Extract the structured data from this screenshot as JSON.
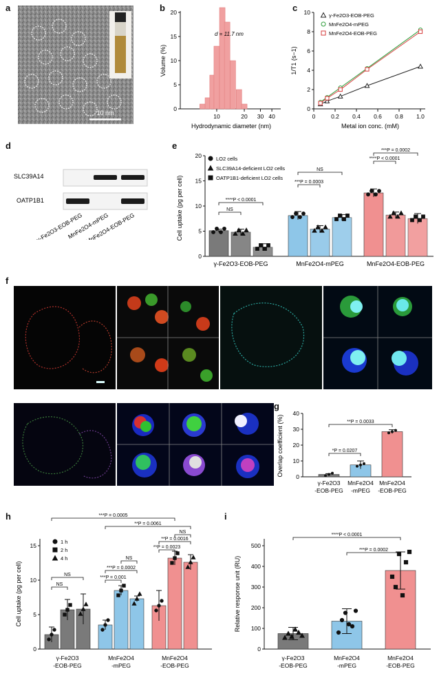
{
  "panels": {
    "a": {
      "label": "a",
      "scalebar": "10 nm"
    },
    "b": {
      "label": "b",
      "annotation": "d = 11.7 nm",
      "ylabel": "Volume (%)",
      "xlabel": "Hydrodynamic diameter (nm)",
      "xticks": [
        "10",
        "20",
        "30",
        "40"
      ],
      "yticks": [
        "0",
        "5",
        "10",
        "15",
        "20"
      ]
    },
    "c": {
      "label": "c",
      "ylabel": "1/T1 (s−1)",
      "xlabel": "Metal ion conc. (mM)",
      "xticks": [
        "0",
        "0.2",
        "0.4",
        "0.6",
        "0.8",
        "1.0"
      ],
      "yticks": [
        "0",
        "2",
        "4",
        "6",
        "8",
        "10"
      ]
    },
    "d": {
      "label": "d",
      "row1": "SLC39A14",
      "row2": "OATP1B1",
      "lanes": [
        "γ-Fe2O3-EOB-PEG",
        "MnFe2O4-mPEG",
        "MnFe2O4-EOB-PEG"
      ]
    },
    "e": {
      "label": "e",
      "ylabel": "Cell uptake (pg per cell)",
      "yticks": [
        "0",
        "5",
        "10",
        "15",
        "20"
      ],
      "legend": [
        "LO2 cells",
        "SLC39A14-deficient LO2 cells",
        "OATP1B1-deficient LO2 cells"
      ],
      "groups": [
        "γ-Fe2O3-EOB-PEG",
        "MnFe2O4-mPEG",
        "MnFe2O4-EOB-PEG"
      ],
      "stats": [
        "****P < 0.0001",
        "NS",
        "NS",
        "***P = 0.0003",
        "***P = 0.0002",
        "****P < 0.0001"
      ]
    },
    "f": {
      "label": "f"
    },
    "g": {
      "label": "g",
      "ylabel": "Overlap coefficient (%)",
      "yticks": [
        "0",
        "10",
        "20",
        "30",
        "40"
      ],
      "cats": [
        [
          "γ-Fe2O3",
          "-EOB-PEG"
        ],
        [
          "MnFe2O4",
          "-mPEG"
        ],
        [
          "MnFe2O4",
          "-EOB-PEG"
        ]
      ],
      "stats": [
        "**P = 0.0033",
        "*P = 0.0207"
      ]
    },
    "h": {
      "label": "h",
      "ylabel": "Cell uptake (pg per cell)",
      "yticks": [
        "0",
        "5",
        "10",
        "15"
      ],
      "legend": [
        "1 h",
        "2 h",
        "4 h"
      ],
      "cats": [
        [
          "γ-Fe2O3",
          "-EOB-PEG"
        ],
        [
          "MnFe2O4",
          "-mPEG"
        ],
        [
          "MnFe2O4",
          "-EOB-PEG"
        ]
      ],
      "stats": [
        "***P = 0.0005",
        "**P = 0.0061",
        "NS",
        "**P = 0.0016",
        "**P = 0.0023",
        "NS",
        "***P = 0.0002",
        "***P = 0.001",
        "NS",
        "NS"
      ]
    },
    "i": {
      "label": "i",
      "ylabel": "Relative response unit (RU)",
      "yticks": [
        "0",
        "100",
        "200",
        "300",
        "400",
        "500"
      ],
      "cats": [
        [
          "γ-Fe2O3",
          "-EOB-PEG"
        ],
        [
          "MnFe2O4",
          "-mPEG"
        ],
        [
          "MnFe2O4",
          "-EOB-PEG"
        ]
      ],
      "stats": [
        "****P < 0.0001",
        "***P = 0.0002"
      ]
    }
  },
  "chart_data": [
    {
      "id": "b",
      "type": "bar",
      "xscale": "log",
      "x": [
        7,
        8,
        9,
        10,
        11.5,
        13,
        15,
        17.5,
        20
      ],
      "values": [
        1,
        2.3,
        7,
        13,
        21,
        18,
        10,
        4,
        1
      ],
      "xlabel": "Hydrodynamic diameter (nm)",
      "ylabel": "Volume (%)",
      "ylim": [
        0,
        20
      ],
      "color": "#f0a0a0"
    },
    {
      "id": "c",
      "type": "line",
      "x": [
        0.0625,
        0.125,
        0.25,
        0.5,
        1.0
      ],
      "series": [
        {
          "name": "γ-Fe2O3-EOB-PEG",
          "values": [
            0.5,
            0.8,
            1.3,
            2.4,
            4.4
          ],
          "color": "#222222",
          "marker": "triangle"
        },
        {
          "name": "MnFe2O4-mPEG",
          "values": [
            0.7,
            1.2,
            2.2,
            4.2,
            8.2
          ],
          "color": "#2e9d3a",
          "marker": "circle"
        },
        {
          "name": "MnFe2O4-EOB-PEG",
          "values": [
            0.6,
            1.1,
            2.0,
            4.1,
            8.0
          ],
          "color": "#d63b3b",
          "marker": "square"
        }
      ],
      "xlabel": "Metal ion conc. (mM)",
      "ylabel": "1/T1 (s−1)",
      "xlim": [
        0,
        1.0
      ],
      "ylim": [
        0,
        10
      ]
    },
    {
      "id": "e",
      "type": "bar",
      "categories": [
        "γ-Fe2O3-EOB-PEG",
        "MnFe2O4-mPEG",
        "MnFe2O4-EOB-PEG"
      ],
      "series": [
        {
          "name": "LO2 cells",
          "values": [
            5.1,
            8.1,
            12.6
          ],
          "err": [
            0.3,
            0.8,
            0.8
          ]
        },
        {
          "name": "SLC39A14-deficient LO2 cells",
          "values": [
            4.8,
            5.4,
            8.2
          ],
          "err": [
            0.6,
            0.7,
            0.6
          ]
        },
        {
          "name": "OATP1B1-deficient LO2 cells",
          "values": [
            1.8,
            7.7,
            7.5
          ],
          "err": [
            0.7,
            0.6,
            1.0
          ]
        }
      ],
      "colors": [
        "#7a7a7a",
        "#8ec6e8",
        "#f09090"
      ],
      "ylabel": "Cell uptake (pg per cell)",
      "ylim": [
        0,
        20
      ]
    },
    {
      "id": "g",
      "type": "bar",
      "categories": [
        "γ-Fe2O3-EOB-PEG",
        "MnFe2O4-mPEG",
        "MnFe2O4-EOB-PEG"
      ],
      "values": [
        1.5,
        7.5,
        28.5
      ],
      "err": [
        0.5,
        2.5,
        1.2
      ],
      "colors": [
        "#7a7a7a",
        "#8ec6e8",
        "#f09090"
      ],
      "ylabel": "Overlap coefficient (%)",
      "ylim": [
        0,
        40
      ]
    },
    {
      "id": "h",
      "type": "bar",
      "categories": [
        "γ-Fe2O3-EOB-PEG",
        "MnFe2O4-mPEG",
        "MnFe2O4-EOB-PEG"
      ],
      "series": [
        {
          "name": "1 h",
          "values": [
            2.1,
            3.5,
            6.3
          ],
          "err": [
            1.1,
            0.7,
            2.2
          ]
        },
        {
          "name": "2 h",
          "values": [
            5.7,
            8.5,
            13.2
          ],
          "err": [
            1.5,
            0.7,
            1.0
          ]
        },
        {
          "name": "4 h",
          "values": [
            5.8,
            7.3,
            12.6
          ],
          "err": [
            2.2,
            0.4,
            1.1
          ]
        }
      ],
      "colors": [
        "#7a7a7a",
        "#8ec6e8",
        "#f09090"
      ],
      "ylabel": "Cell uptake (pg per cell)",
      "ylim": [
        0,
        15
      ]
    },
    {
      "id": "i",
      "type": "bar",
      "categories": [
        "γ-Fe2O3-EOB-PEG",
        "MnFe2O4-mPEG",
        "MnFe2O4-EOB-PEG"
      ],
      "values": [
        75,
        135,
        380
      ],
      "err": [
        30,
        60,
        90
      ],
      "colors": [
        "#7a7a7a",
        "#8ec6e8",
        "#f09090"
      ],
      "ylabel": "Relative response unit (RU)",
      "ylim": [
        0,
        500
      ]
    }
  ]
}
